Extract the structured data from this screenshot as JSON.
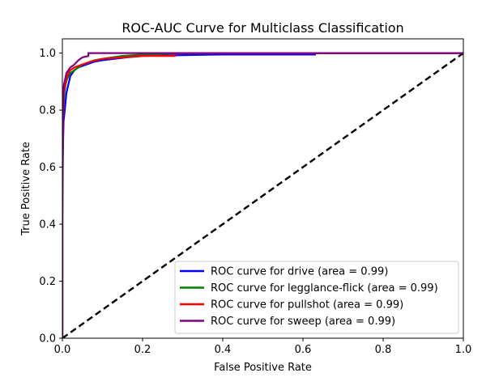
{
  "chart_data": {
    "type": "line",
    "title": "ROC-AUC Curve for Multiclass Classification",
    "xlabel": "False Positive Rate",
    "ylabel": "True Positive Rate",
    "xlim": [
      0.0,
      1.0
    ],
    "ylim": [
      0.0,
      1.05
    ],
    "x_ticks": [
      "0.0",
      "0.2",
      "0.4",
      "0.6",
      "0.8",
      "1.0"
    ],
    "y_ticks": [
      "0.0",
      "0.2",
      "0.4",
      "0.6",
      "0.8",
      "1.0"
    ],
    "grid": false,
    "legend_position": "bottom-right",
    "series": [
      {
        "name": "ROC curve for drive (area = 0.99)",
        "color": "#0000ff",
        "x": [
          0.0,
          0.0,
          0.003,
          0.006,
          0.01,
          0.015,
          0.02,
          0.03,
          0.04,
          0.06,
          0.08,
          0.1,
          0.13,
          0.16,
          0.2,
          0.3,
          0.4,
          0.63,
          0.63,
          0.8,
          1.0
        ],
        "y": [
          0.0,
          0.58,
          0.76,
          0.8,
          0.86,
          0.89,
          0.92,
          0.94,
          0.95,
          0.96,
          0.97,
          0.975,
          0.98,
          0.985,
          0.99,
          0.993,
          0.995,
          0.995,
          1.0,
          1.0,
          1.0
        ]
      },
      {
        "name": "ROC curve for legglance-flick (area = 0.99)",
        "color": "#008000",
        "x": [
          0.0,
          0.0,
          0.002,
          0.005,
          0.008,
          0.012,
          0.02,
          0.03,
          0.05,
          0.08,
          0.1,
          0.15,
          0.2,
          0.3,
          0.5,
          0.7,
          1.0
        ],
        "y": [
          0.0,
          0.4,
          0.78,
          0.86,
          0.89,
          0.91,
          0.93,
          0.94,
          0.96,
          0.975,
          0.98,
          0.99,
          0.995,
          1.0,
          1.0,
          1.0,
          1.0
        ]
      },
      {
        "name": "ROC curve for pullshot (area = 0.99)",
        "color": "#ff0000",
        "x": [
          0.0,
          0.0,
          0.003,
          0.006,
          0.01,
          0.015,
          0.02,
          0.03,
          0.04,
          0.05,
          0.07,
          0.1,
          0.15,
          0.2,
          0.28,
          0.28,
          0.5,
          0.7,
          1.0
        ],
        "y": [
          0.0,
          0.62,
          0.86,
          0.88,
          0.91,
          0.93,
          0.94,
          0.95,
          0.955,
          0.96,
          0.97,
          0.98,
          0.985,
          0.99,
          0.99,
          1.0,
          1.0,
          1.0,
          1.0
        ]
      },
      {
        "name": "ROC curve for sweep (area = 0.99)",
        "color": "#800080",
        "x": [
          0.0,
          0.0,
          0.002,
          0.004,
          0.007,
          0.01,
          0.015,
          0.02,
          0.03,
          0.04,
          0.05,
          0.065,
          0.065,
          0.1,
          0.2,
          0.4,
          0.6,
          1.0
        ],
        "y": [
          0.0,
          0.45,
          0.86,
          0.89,
          0.91,
          0.93,
          0.94,
          0.95,
          0.96,
          0.975,
          0.985,
          0.99,
          1.0,
          1.0,
          1.0,
          1.0,
          1.0,
          1.0
        ]
      },
      {
        "name": "",
        "color": "#000000",
        "dashed": true,
        "x": [
          0.0,
          1.0
        ],
        "y": [
          0.0,
          1.0
        ]
      }
    ]
  }
}
